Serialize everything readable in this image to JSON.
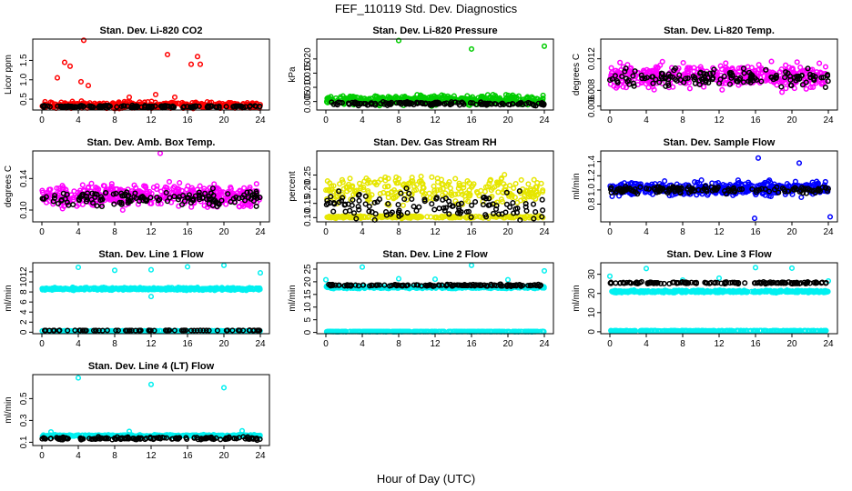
{
  "title": "FEF_110119  Std. Dev. Diagnostics",
  "xlabel": "Hour of Day (UTC)",
  "colors": {
    "red": "#ff0000",
    "green": "#00cc00",
    "magenta": "#ff00ff",
    "yellow": "#ffff00",
    "blue": "#0000ff",
    "cyan": "#00ffff",
    "black": "#000000"
  },
  "chart_data": [
    {
      "type": "scatter",
      "title": "Stan. Dev. Li-820 CO2",
      "ylabel": "Licor ppm",
      "xticks": [
        "0",
        "4",
        "8",
        "12",
        "16",
        "20",
        "24"
      ],
      "yticks": [
        "0.5",
        "1.0",
        "1.5"
      ],
      "xlim": [
        -1,
        25
      ],
      "ylim": [
        0.22,
        2.05
      ],
      "series": [
        {
          "color": "red",
          "base": 0.34,
          "spread": 0.12,
          "count": 420,
          "outliers": [
            [
              4.6,
              2.02
            ],
            [
              2.5,
              1.45
            ],
            [
              3.1,
              1.35
            ],
            [
              4.3,
              0.95
            ],
            [
              5.1,
              0.85
            ],
            [
              13.8,
              1.65
            ],
            [
              16.4,
              1.4
            ],
            [
              17.1,
              1.6
            ],
            [
              17.4,
              1.4
            ],
            [
              12.5,
              0.62
            ],
            [
              14.6,
              0.55
            ],
            [
              1.7,
              1.05
            ],
            [
              9.6,
              0.55
            ]
          ]
        },
        {
          "color": "black",
          "base": 0.31,
          "spread": 0.04,
          "count": 140,
          "outliers": []
        }
      ]
    },
    {
      "type": "scatter",
      "title": "Stan. Dev. Li-820 Pressure",
      "ylabel": "kPa",
      "xticks": [
        "0",
        "4",
        "8",
        "12",
        "16",
        "20",
        "24"
      ],
      "yticks": [
        "0.005",
        "0.010",
        "0.015",
        "0.020"
      ],
      "xlim": [
        -1,
        25
      ],
      "ylim": [
        0.002,
        0.027
      ],
      "series": [
        {
          "color": "green",
          "base": 0.0055,
          "spread": 0.0022,
          "count": 450,
          "outliers": [
            [
              8.0,
              0.0265
            ],
            [
              16.0,
              0.0235
            ],
            [
              24.0,
              0.0245
            ]
          ]
        },
        {
          "color": "black",
          "base": 0.0042,
          "spread": 0.001,
          "count": 140,
          "outliers": []
        }
      ]
    },
    {
      "type": "scatter",
      "title": "Stan. Dev. Li-820 Temp.",
      "ylabel": "degrees C",
      "xticks": [
        "0",
        "4",
        "8",
        "12",
        "16",
        "20",
        "24"
      ],
      "yticks": [
        "0.006",
        "0.008",
        "0.012"
      ],
      "xlim": [
        -1,
        25
      ],
      "ylim": [
        0.0055,
        0.0145
      ],
      "series": [
        {
          "color": "magenta",
          "base": 0.0098,
          "spread": 0.0022,
          "count": 420,
          "outliers": []
        },
        {
          "color": "black",
          "base": 0.0096,
          "spread": 0.0016,
          "count": 140,
          "outliers": []
        }
      ]
    },
    {
      "type": "scatter",
      "title": "Stan. Dev. Amb. Box Temp.",
      "ylabel": "degrees C",
      "xticks": [
        "0",
        "4",
        "8",
        "12",
        "16",
        "20",
        "24"
      ],
      "yticks": [
        "0.10",
        "0.14"
      ],
      "xlim": [
        -1,
        25
      ],
      "ylim": [
        0.085,
        0.175
      ],
      "series": [
        {
          "color": "magenta",
          "base": 0.118,
          "spread": 0.02,
          "count": 420,
          "outliers": [
            [
              13.0,
              0.172
            ]
          ]
        },
        {
          "color": "black",
          "base": 0.115,
          "spread": 0.014,
          "count": 140,
          "outliers": []
        }
      ]
    },
    {
      "type": "scatter",
      "title": "Stan. Dev. Gas Stream RH",
      "ylabel": "percent",
      "xticks": [
        "0",
        "4",
        "8",
        "12",
        "16",
        "20",
        "24"
      ],
      "yticks": [
        "0.10",
        "0.15",
        "0.20",
        "0.25"
      ],
      "xlim": [
        -1,
        25
      ],
      "ylim": [
        0.085,
        0.335
      ],
      "series": [
        {
          "color": "yellow",
          "base": 0.2,
          "spread": 0.07,
          "count": 260,
          "outliers": []
        },
        {
          "color": "yellow",
          "base": 0.102,
          "spread": 0.006,
          "count": 200,
          "outliers": []
        },
        {
          "color": "black",
          "base": 0.14,
          "spread": 0.07,
          "count": 120,
          "outliers": []
        }
      ]
    },
    {
      "type": "scatter",
      "title": "Stan. Dev. Sample Flow",
      "ylabel": "ml/min",
      "xticks": [
        "0",
        "4",
        "8",
        "12",
        "16",
        "20",
        "24"
      ],
      "yticks": [
        "0.8",
        "1.0",
        "1.2",
        "1.4"
      ],
      "xlim": [
        -1,
        25
      ],
      "ylim": [
        0.55,
        1.55
      ],
      "series": [
        {
          "color": "blue",
          "base": 1.02,
          "spread": 0.14,
          "count": 440,
          "outliers": [
            [
              15.9,
              0.6
            ],
            [
              24.2,
              0.62
            ],
            [
              16.3,
              1.45
            ],
            [
              20.8,
              1.38
            ]
          ]
        },
        {
          "color": "black",
          "base": 1.0,
          "spread": 0.07,
          "count": 140,
          "outliers": []
        }
      ]
    },
    {
      "type": "scatter",
      "title": "Stan. Dev. Line 1 Flow",
      "ylabel": "ml/min",
      "xticks": [
        "0",
        "4",
        "8",
        "12",
        "16",
        "20",
        "24"
      ],
      "yticks": [
        "0",
        "2",
        "4",
        "6",
        "8",
        "10",
        "12"
      ],
      "xlim": [
        -1,
        25
      ],
      "ylim": [
        -0.3,
        13.8
      ],
      "series": [
        {
          "color": "cyan",
          "base": 8.6,
          "spread": 0.35,
          "count": 420,
          "outliers": [
            [
              4.0,
              12.9
            ],
            [
              8.0,
              12.3
            ],
            [
              12.0,
              12.4
            ],
            [
              16.0,
              13.0
            ],
            [
              20.0,
              13.3
            ],
            [
              24.0,
              11.8
            ],
            [
              12.0,
              7.1
            ]
          ]
        },
        {
          "color": "cyan",
          "base": 0.25,
          "spread": 0.05,
          "count": 300,
          "outliers": []
        },
        {
          "color": "black",
          "base": 0.35,
          "spread": 0.05,
          "count": 70,
          "outliers": []
        }
      ]
    },
    {
      "type": "scatter",
      "title": "Stan. Dev. Line 2 Flow",
      "ylabel": "ml/min",
      "xticks": [
        "0",
        "4",
        "8",
        "12",
        "16",
        "20",
        "24"
      ],
      "yticks": [
        "0",
        "5",
        "10",
        "15",
        "20",
        "25"
      ],
      "xlim": [
        -1,
        25
      ],
      "ylim": [
        -0.5,
        27.5
      ],
      "series": [
        {
          "color": "cyan",
          "base": 17.8,
          "spread": 0.7,
          "count": 420,
          "outliers": [
            [
              0.0,
              20.8
            ],
            [
              4.0,
              25.8
            ],
            [
              8.0,
              21.2
            ],
            [
              12.0,
              21.0
            ],
            [
              16.0,
              26.5
            ],
            [
              20.0,
              20.8
            ],
            [
              24.0,
              24.3
            ]
          ]
        },
        {
          "color": "cyan",
          "base": 0.35,
          "spread": 0.1,
          "count": 300,
          "outliers": []
        },
        {
          "color": "black",
          "base": 18.6,
          "spread": 0.5,
          "count": 140,
          "outliers": []
        }
      ]
    },
    {
      "type": "scatter",
      "title": "Stan. Dev. Line 3 Flow",
      "ylabel": "ml/min",
      "xticks": [
        "0",
        "4",
        "8",
        "12",
        "16",
        "20",
        "24"
      ],
      "yticks": [
        "0",
        "10",
        "20",
        "30"
      ],
      "xlim": [
        -1,
        25
      ],
      "ylim": [
        -1,
        36
      ],
      "series": [
        {
          "color": "cyan",
          "base": 21.0,
          "spread": 0.8,
          "count": 420,
          "outliers": [
            [
              0.0,
              29.0
            ],
            [
              4.0,
              33.0
            ],
            [
              8.0,
              27.0
            ],
            [
              12.0,
              28.0
            ],
            [
              16.0,
              33.5
            ],
            [
              20.0,
              33.2
            ],
            [
              24.0,
              26.5
            ]
          ]
        },
        {
          "color": "cyan",
          "base": 0.5,
          "spread": 0.2,
          "count": 300,
          "outliers": []
        },
        {
          "color": "black",
          "base": 25.5,
          "spread": 0.7,
          "count": 140,
          "outliers": []
        }
      ]
    },
    {
      "type": "scatter",
      "title": "Stan. Dev. Line 4 (LT) Flow",
      "ylabel": "ml/min",
      "xticks": [
        "0",
        "4",
        "8",
        "12",
        "16",
        "20",
        "24"
      ],
      "yticks": [
        "0.1",
        "0.3",
        "0.5"
      ],
      "xlim": [
        -1,
        25
      ],
      "ylim": [
        0.07,
        0.72
      ],
      "series": [
        {
          "color": "cyan",
          "base": 0.16,
          "spread": 0.012,
          "count": 420,
          "outliers": [
            [
              4.0,
              0.69
            ],
            [
              12.0,
              0.63
            ],
            [
              20.0,
              0.6
            ],
            [
              1.0,
              0.195
            ],
            [
              9.6,
              0.2
            ],
            [
              22.0,
              0.205
            ]
          ]
        },
        {
          "color": "black",
          "base": 0.135,
          "spread": 0.018,
          "count": 140,
          "outliers": []
        }
      ]
    }
  ]
}
